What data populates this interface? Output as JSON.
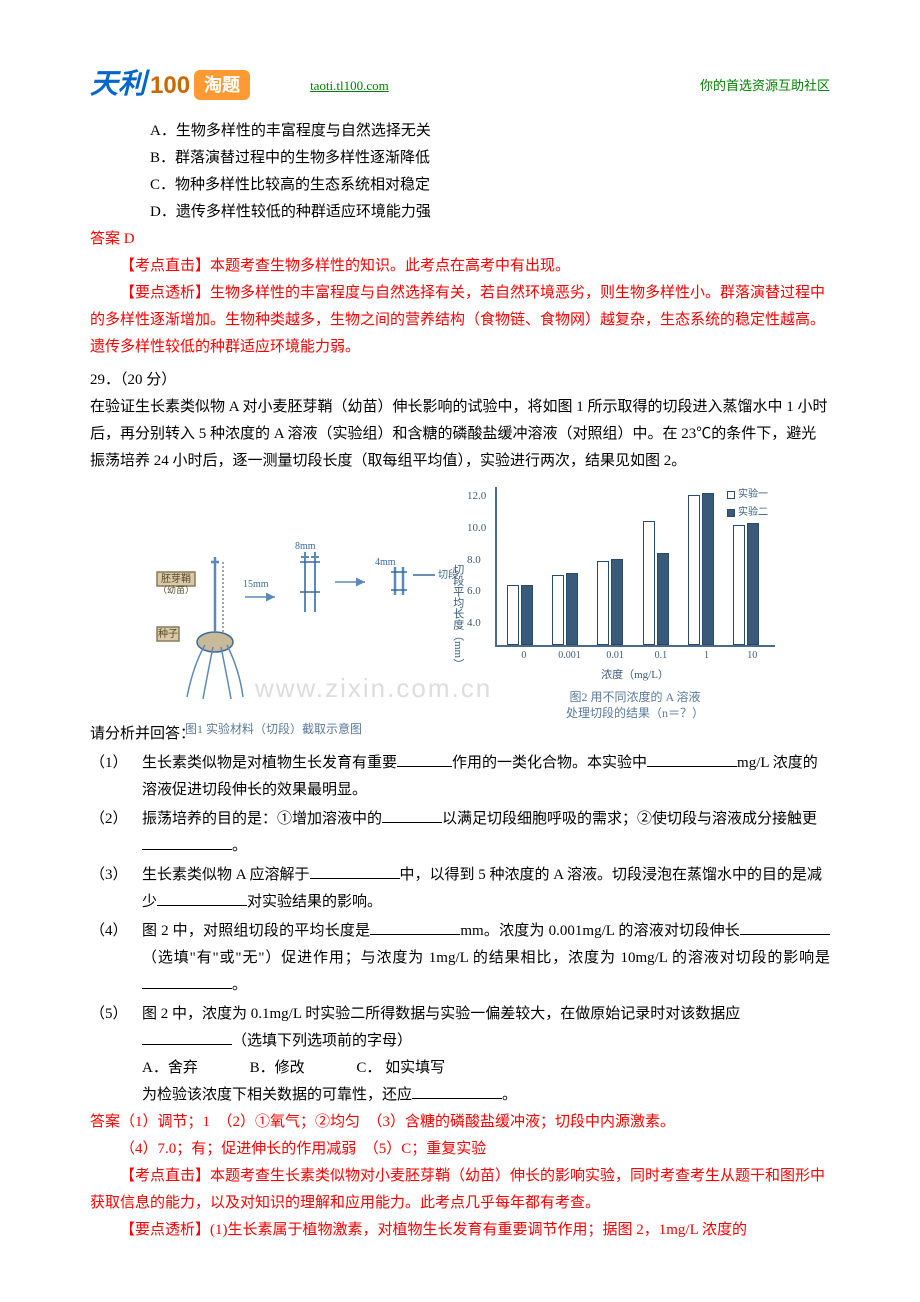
{
  "header": {
    "logo_tianli": "天利",
    "logo_100": "100",
    "logo_badge": "淘题",
    "url": "taoti.tl100.com",
    "slogan": "你的首选资源互助社区"
  },
  "options_block1": {
    "A": "A．生物多样性的丰富程度与自然选择无关",
    "B": "B．群落演替过程中的生物多样性逐渐降低",
    "C": "C．物种多样性比较高的生态系统相对稳定",
    "D": "D．遗传多样性较低的种群适应环境能力强"
  },
  "answer1_label": "答案 D",
  "analysis1": {
    "hit_label": "【考点直击】",
    "hit_text": "本题考查生物多样性的知识。此考点在高考中有出现。",
    "point_label": "【要点透析】",
    "point_text": "生物多样性的丰富程度与自然选择有关，若自然环境恶劣，则生物多样性小。群落演替过程中的多样性逐渐增加。生物种类越多，生物之间的营养结构（食物链、食物网）越复杂，生态系统的稳定性越高。遗传多样性较低的种群适应环境能力弱。"
  },
  "q29": {
    "num": "29．（20 分）",
    "stem1": "在验证生长素类似物 A 对小麦胚芽鞘（幼苗）伸长影响的试验中，将如图 1 所示取得的切段进入蒸馏水中 1 小时后，再分别转入 5 种浓度的 A 溶液（实验组）和含糖的磷酸盐缓冲溶液（对照组）中。在 23℃的条件下，避光振荡培养 24 小时后，逐一测量切段长度（取每组平均值），实验进行两次，结果见如图 2。"
  },
  "fig1": {
    "label_shoot": "胚芽鞘\n（幼苗）",
    "label_seed": "种子",
    "len_15": "15mm",
    "len_8": "8mm",
    "len_4": "4mm",
    "cut_label": "切段",
    "caption": "图1  实验材料（切段）截取示意图"
  },
  "watermark": "www.zixin.com.cn",
  "chart": {
    "type": "bar",
    "y_ticks": [
      "4.0",
      "6.0",
      "8.0",
      "10.0",
      "12.0"
    ],
    "ylim": [
      4.0,
      12.0
    ],
    "y_label": "切段平均长度（mm）",
    "x_labels": [
      "0",
      "0.001",
      "0.01",
      "0.1",
      "1",
      "10"
    ],
    "x_title": "浓度（mg/L）",
    "legend": {
      "open": "实验一",
      "solid": "实验二"
    },
    "series1": [
      7.0,
      7.5,
      8.2,
      10.2,
      11.5,
      10.0
    ],
    "series2": [
      7.0,
      7.6,
      8.3,
      8.6,
      11.6,
      10.1
    ],
    "bar_open_color": "#ffffff",
    "bar_solid_color": "#3a5a7a",
    "bar_border": "#2a4a6a",
    "caption": "图2  用不同浓度的 A 溶液\n处理切段的结果（n＝？）"
  },
  "prompt": "请分析并回答：",
  "subq": {
    "q1": {
      "num": "（1）",
      "text_a": "生长素类似物是对植物生长发育有重要",
      "text_b": "作用的一类化合物。本实验中",
      "text_c": "mg/L 浓度的溶液促进切段伸长的效果最明显。"
    },
    "q2": {
      "num": "（2）",
      "text_a": "振荡培养的目的是：①增加溶液中的",
      "text_b": "以满足切段细胞呼吸的需求；②使切段与溶液成分接触更",
      "text_c": "。"
    },
    "q3": {
      "num": "（3）",
      "text_a": "生长素类似物 A 应溶解于",
      "text_b": "中，以得到 5 种浓度的 A 溶液。切段浸泡在蒸馏水中的目的是减少",
      "text_c": "对实验结果的影响。"
    },
    "q4": {
      "num": "（4）",
      "text_a": "图 2 中，对照组切段的平均长度是",
      "text_b": "mm。浓度为 0.001mg/L 的溶液对切段伸长",
      "text_c": "（选填\"有\"或\"无\"）促进作用；与浓度为 1mg/L 的结果相比，浓度为 10mg/L 的溶液对切段的影响是",
      "text_d": "。"
    },
    "q5": {
      "num": "（5）",
      "text_a": "图 2 中，浓度为 0.1mg/L 时实验二所得数据与实验一偏差较大，在做原始记录时对该数据应",
      "text_b": "（选填下列选项前的字母）",
      "optA": "A．舍弃",
      "optB": "B．修改",
      "optC": "C．  如实填写",
      "tail": "为检验该浓度下相关数据的可靠性，还应",
      "tail_end": "。"
    }
  },
  "final_answer": {
    "label": "答案",
    "a1": "（1）调节；1　",
    "a2": "（2）①氧气；②均匀　",
    "a3": "（3）含糖的磷酸盐缓冲液；切段中内源激素。",
    "a4": "（4）7.0；有；促进伸长的作用减弱　",
    "a5": "（5）C；重复实验"
  },
  "analysis2": {
    "hit_label": "【考点直击】",
    "hit_text": "本题考查生长素类似物对小麦胚芽鞘（幼苗）伸长的影响实验，同时考查考生从题干和图形中获取信息的能力，以及对知识的理解和应用能力。此考点几乎每年都有考查。",
    "point_label": "【要点透析】",
    "point_text": "(1)生长素属于植物激素，对植物生长发育有重要调节作用；据图 2，1mg/L 浓度的"
  }
}
